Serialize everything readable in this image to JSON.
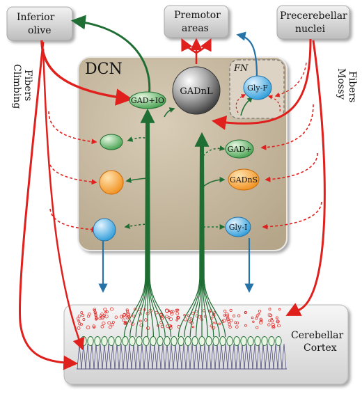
{
  "boxes": {
    "inferior_olive": [
      "Inferior",
      "olive"
    ],
    "premotor": [
      "Premotor",
      "areas"
    ],
    "precerebellar": [
      "Precerebellar",
      "nuclei"
    ],
    "cortex": [
      "Cerebellar",
      "Cortex"
    ]
  },
  "regions": {
    "dcn": "DCN",
    "fn": "FN"
  },
  "side_labels": {
    "climbing": [
      "Climbing",
      "Fibers"
    ],
    "mossy": [
      "Mossy",
      "Fibers"
    ]
  },
  "cells": {
    "gad_io": "GAD+IO",
    "gadnl": "GADnL",
    "gly_f": "Gly-F",
    "gad_plus": "GAD+",
    "gadns": "GADnS",
    "gly_i": "Gly-I"
  },
  "colors": {
    "excitatory": "#e0201d",
    "inhibitory_green": "#1f6e33",
    "glycine_blue": "#2673a8",
    "dcn_fill": "#c9bba3",
    "box_fill": "#d6d6d6"
  }
}
